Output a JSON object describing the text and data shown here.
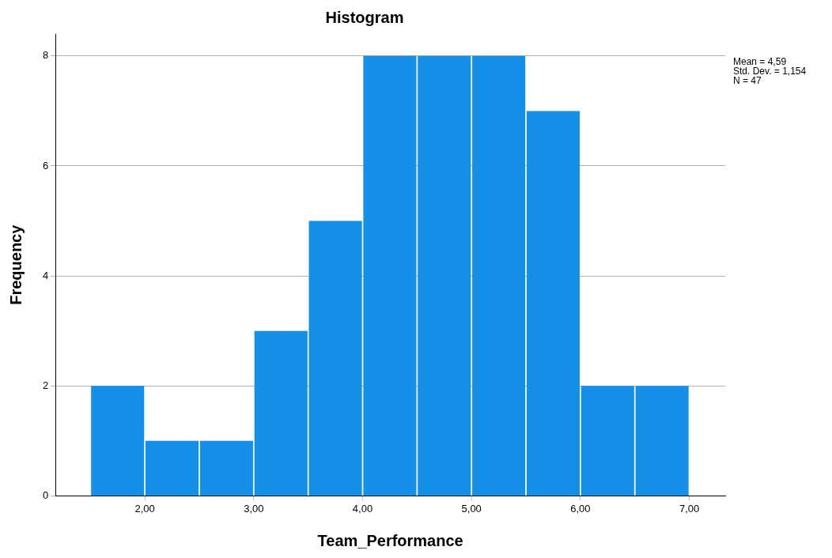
{
  "chart_data": {
    "type": "histogram",
    "title": "Histogram",
    "xlabel": "Team_Performance",
    "ylabel": "Frequency",
    "bins": [
      1.5,
      2,
      2.5,
      3,
      3.5,
      4,
      4.5,
      5,
      5.5,
      6,
      6.5,
      7
    ],
    "values": [
      2,
      1,
      1,
      3,
      5,
      8,
      8,
      8,
      7,
      2,
      2
    ],
    "color": "#1490e8",
    "xlim": [
      1.18,
      7.33
    ],
    "xticks": [
      {
        "value": 2,
        "label": "2,00"
      },
      {
        "value": 3,
        "label": "3,00"
      },
      {
        "value": 4,
        "label": "4,00"
      },
      {
        "value": 5,
        "label": "5,00"
      },
      {
        "value": 6,
        "label": "6,00"
      },
      {
        "value": 7,
        "label": "7,00"
      }
    ],
    "ylim": [
      0,
      8.4
    ],
    "yticks": [
      0,
      2,
      4,
      6,
      8
    ],
    "grid": "y",
    "legend": false,
    "annotations": [
      "Mean = 4,59",
      "Std. Dev. = 1,154",
      "N = 47"
    ]
  }
}
